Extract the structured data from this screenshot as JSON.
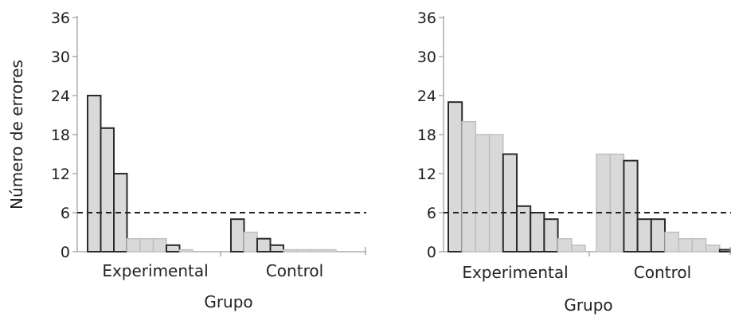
{
  "chart_data": [
    {
      "type": "bar",
      "title": "",
      "xlabel": "Grupo",
      "ylabel": "Número de errores",
      "ylim": [
        0,
        36
      ],
      "yticks": [
        0,
        6,
        12,
        18,
        24,
        30,
        36
      ],
      "threshold": 6,
      "grid": false,
      "groups": [
        {
          "label": "Experimental",
          "values": [
            24,
            19,
            12,
            2,
            2,
            2,
            1,
            0.3
          ]
        },
        {
          "label": "Control",
          "values": [
            5,
            3,
            2,
            1,
            0.3,
            0.3,
            0.3,
            0.3
          ]
        }
      ],
      "bar_styles": [
        [
          "dark",
          "dark",
          "dark",
          "light",
          "light",
          "light",
          "dark",
          "light"
        ],
        [
          "dark",
          "light",
          "dark",
          "dark",
          "light",
          "light",
          "light",
          "light"
        ]
      ]
    },
    {
      "type": "bar",
      "title": "",
      "xlabel": "Grupo",
      "ylabel": "",
      "ylim": [
        0,
        36
      ],
      "yticks": [
        0,
        6,
        12,
        18,
        24,
        30,
        36
      ],
      "threshold": 6,
      "grid": false,
      "groups": [
        {
          "label": "Experimental",
          "values": [
            23,
            20,
            18,
            18,
            15,
            7,
            6,
            5,
            2,
            1
          ]
        },
        {
          "label": "Control",
          "values": [
            15,
            15,
            14,
            5,
            5,
            3,
            2,
            2,
            1,
            0.3
          ]
        }
      ],
      "bar_styles": [
        [
          "dark",
          "light",
          "light",
          "light",
          "dark",
          "dark",
          "dark",
          "dark",
          "light",
          "light"
        ],
        [
          "light",
          "light",
          "dark",
          "dark",
          "dark",
          "light",
          "light",
          "light",
          "light",
          "dark"
        ]
      ]
    }
  ],
  "colors": {
    "bar_fill": "#d9d9d9",
    "bar_dark_stroke": "#2b2b2b",
    "bar_light_stroke": "#bdbdbd",
    "axis": "#9a9a9a",
    "threshold": "#222222"
  }
}
